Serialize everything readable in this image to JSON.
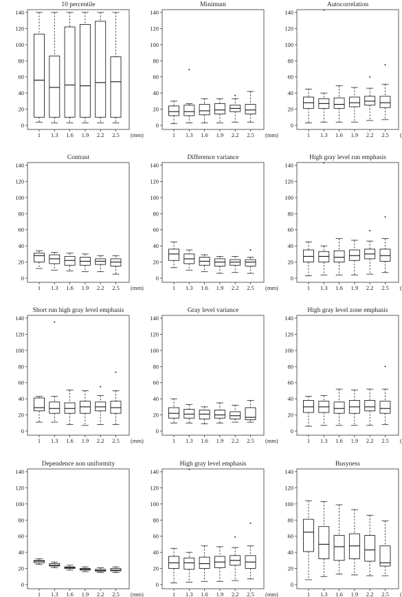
{
  "figure": {
    "unit_label": "(mm)"
  },
  "chart_data": [
    {
      "type": "box",
      "title": "10 percentile",
      "categories": [
        "1",
        "1.3",
        "1.6",
        "1.9",
        "2.2",
        "2.5"
      ],
      "ylim": [
        0,
        140
      ],
      "yticks": [
        0,
        20,
        40,
        60,
        80,
        100,
        120,
        140
      ],
      "boxes": [
        {
          "min": 4,
          "q1": 10,
          "median": 56,
          "q3": 113,
          "max": 140,
          "outliers": []
        },
        {
          "min": 3,
          "q1": 10,
          "median": 47,
          "q3": 86,
          "max": 140,
          "outliers": []
        },
        {
          "min": 3,
          "q1": 10,
          "median": 50,
          "q3": 122,
          "max": 140,
          "outliers": []
        },
        {
          "min": 3,
          "q1": 10,
          "median": 49,
          "q3": 125,
          "max": 140,
          "outliers": []
        },
        {
          "min": 3,
          "q1": 10,
          "median": 53,
          "q3": 129,
          "max": 140,
          "outliers": []
        },
        {
          "min": 3,
          "q1": 10,
          "median": 54,
          "q3": 85,
          "max": 140,
          "outliers": []
        }
      ]
    },
    {
      "type": "box",
      "title": "Minimum",
      "categories": [
        "1",
        "1.3",
        "1.6",
        "1.9",
        "2.2",
        "2.5"
      ],
      "ylim": [
        0,
        140
      ],
      "yticks": [
        0,
        20,
        40,
        60,
        80,
        100,
        120,
        140
      ],
      "boxes": [
        {
          "min": 2,
          "q1": 12,
          "median": 17,
          "q3": 24,
          "max": 30,
          "outliers": []
        },
        {
          "min": 3,
          "q1": 12,
          "median": 17,
          "q3": 25,
          "max": 27,
          "outliers": [
            69
          ]
        },
        {
          "min": 3,
          "q1": 13,
          "median": 18,
          "q3": 26,
          "max": 33,
          "outliers": []
        },
        {
          "min": 3,
          "q1": 14,
          "median": 19,
          "q3": 27,
          "max": 33,
          "outliers": []
        },
        {
          "min": 4,
          "q1": 17,
          "median": 21,
          "q3": 25,
          "max": 33,
          "outliers": [
            37
          ]
        },
        {
          "min": 4,
          "q1": 14,
          "median": 19,
          "q3": 26,
          "max": 42,
          "outliers": []
        }
      ]
    },
    {
      "type": "box",
      "title": "Autocorrelation",
      "categories": [
        "1",
        "1.3",
        "1.6",
        "1.9",
        "2.2",
        "2.5"
      ],
      "ylim": [
        0,
        140
      ],
      "yticks": [
        0,
        20,
        40,
        60,
        80,
        100,
        120,
        140
      ],
      "boxes": [
        {
          "min": 3,
          "q1": 21,
          "median": 28,
          "q3": 35,
          "max": 45,
          "outliers": []
        },
        {
          "min": 4,
          "q1": 21,
          "median": 27,
          "q3": 33,
          "max": 40,
          "outliers": [
            143
          ]
        },
        {
          "min": 4,
          "q1": 21,
          "median": 26,
          "q3": 34,
          "max": 49,
          "outliers": []
        },
        {
          "min": 4,
          "q1": 23,
          "median": 28,
          "q3": 35,
          "max": 47,
          "outliers": []
        },
        {
          "min": 6,
          "q1": 25,
          "median": 30,
          "q3": 36,
          "max": 46,
          "outliers": [
            60
          ]
        },
        {
          "min": 7,
          "q1": 22,
          "median": 28,
          "q3": 36,
          "max": 51,
          "outliers": [
            75
          ]
        }
      ]
    },
    {
      "type": "box",
      "title": "Contrast",
      "categories": [
        "1",
        "1.3",
        "1.6",
        "1.9",
        "2.2",
        "2.5"
      ],
      "ylim": [
        0,
        140
      ],
      "yticks": [
        0,
        20,
        40,
        60,
        80,
        100,
        120,
        140
      ],
      "boxes": [
        {
          "min": 12,
          "q1": 20,
          "median": 28,
          "q3": 31,
          "max": 34,
          "outliers": []
        },
        {
          "min": 10,
          "q1": 18,
          "median": 24,
          "q3": 29,
          "max": 32,
          "outliers": []
        },
        {
          "min": 9,
          "q1": 16,
          "median": 22,
          "q3": 27,
          "max": 31,
          "outliers": []
        },
        {
          "min": 8,
          "q1": 16,
          "median": 21,
          "q3": 26,
          "max": 30,
          "outliers": []
        },
        {
          "min": 8,
          "q1": 17,
          "median": 21,
          "q3": 24,
          "max": 28,
          "outliers": []
        },
        {
          "min": 5,
          "q1": 15,
          "median": 20,
          "q3": 24,
          "max": 28,
          "outliers": []
        }
      ]
    },
    {
      "type": "box",
      "title": "Difference variance",
      "categories": [
        "1",
        "1.3",
        "1.6",
        "1.9",
        "2.2",
        "2.5"
      ],
      "ylim": [
        0,
        140
      ],
      "yticks": [
        0,
        20,
        40,
        60,
        80,
        100,
        120,
        140
      ],
      "boxes": [
        {
          "min": 13,
          "q1": 22,
          "median": 30,
          "q3": 36,
          "max": 45,
          "outliers": []
        },
        {
          "min": 10,
          "q1": 18,
          "median": 24,
          "q3": 30,
          "max": 35,
          "outliers": []
        },
        {
          "min": 8,
          "q1": 16,
          "median": 21,
          "q3": 26,
          "max": 29,
          "outliers": []
        },
        {
          "min": 6,
          "q1": 15,
          "median": 20,
          "q3": 24,
          "max": 27,
          "outliers": []
        },
        {
          "min": 7,
          "q1": 16,
          "median": 20,
          "q3": 23,
          "max": 27,
          "outliers": []
        },
        {
          "min": 6,
          "q1": 15,
          "median": 20,
          "q3": 23,
          "max": 26,
          "outliers": [
            35
          ]
        }
      ]
    },
    {
      "type": "box",
      "title": "High gray level run emphasis",
      "categories": [
        "1",
        "1.3",
        "1.6",
        "1.9",
        "2.2",
        "2.5"
      ],
      "ylim": [
        0,
        140
      ],
      "yticks": [
        0,
        20,
        40,
        60,
        80,
        100,
        120,
        140
      ],
      "boxes": [
        {
          "min": 3,
          "q1": 20,
          "median": 27,
          "q3": 35,
          "max": 45,
          "outliers": []
        },
        {
          "min": 4,
          "q1": 20,
          "median": 27,
          "q3": 33,
          "max": 40,
          "outliers": [
            143
          ]
        },
        {
          "min": 4,
          "q1": 20,
          "median": 26,
          "q3": 34,
          "max": 49,
          "outliers": []
        },
        {
          "min": 4,
          "q1": 22,
          "median": 28,
          "q3": 35,
          "max": 47,
          "outliers": []
        },
        {
          "min": 5,
          "q1": 24,
          "median": 30,
          "q3": 36,
          "max": 46,
          "outliers": [
            59
          ]
        },
        {
          "min": 7,
          "q1": 21,
          "median": 28,
          "q3": 36,
          "max": 49,
          "outliers": [
            76
          ]
        }
      ]
    },
    {
      "type": "box",
      "title": "Short run high gray level emphasis",
      "categories": [
        "1",
        "1.3",
        "1.6",
        "1.9",
        "2.2",
        "2.5"
      ],
      "ylim": [
        0,
        140
      ],
      "yticks": [
        0,
        20,
        40,
        60,
        80,
        100,
        120,
        140
      ],
      "boxes": [
        {
          "min": 11,
          "q1": 25,
          "median": 29,
          "q3": 41,
          "max": 43,
          "outliers": []
        },
        {
          "min": 11,
          "q1": 22,
          "median": 28,
          "q3": 36,
          "max": 43,
          "outliers": [
            135
          ]
        },
        {
          "min": 8,
          "q1": 22,
          "median": 28,
          "q3": 35,
          "max": 51,
          "outliers": []
        },
        {
          "min": 7,
          "q1": 22,
          "median": 30,
          "q3": 37,
          "max": 50,
          "outliers": []
        },
        {
          "min": 8,
          "q1": 25,
          "median": 30,
          "q3": 36,
          "max": 44,
          "outliers": [
            55
          ]
        },
        {
          "min": 8,
          "q1": 22,
          "median": 29,
          "q3": 37,
          "max": 50,
          "outliers": [
            73
          ]
        }
      ]
    },
    {
      "type": "box",
      "title": "Gray level variance",
      "categories": [
        "1",
        "1.3",
        "1.6",
        "1.9",
        "2.2",
        "2.5"
      ],
      "ylim": [
        0,
        140
      ],
      "yticks": [
        0,
        20,
        40,
        60,
        80,
        100,
        120,
        140
      ],
      "boxes": [
        {
          "min": 10,
          "q1": 16,
          "median": 22,
          "q3": 29,
          "max": 40,
          "outliers": []
        },
        {
          "min": 10,
          "q1": 16,
          "median": 21,
          "q3": 27,
          "max": 33,
          "outliers": []
        },
        {
          "min": 9,
          "q1": 15,
          "median": 21,
          "q3": 26,
          "max": 30,
          "outliers": []
        },
        {
          "min": 10,
          "q1": 16,
          "median": 20,
          "q3": 26,
          "max": 35,
          "outliers": []
        },
        {
          "min": 11,
          "q1": 15,
          "median": 19,
          "q3": 24,
          "max": 32,
          "outliers": []
        },
        {
          "min": 11,
          "q1": 14,
          "median": 17,
          "q3": 29,
          "max": 38,
          "outliers": []
        }
      ]
    },
    {
      "type": "box",
      "title": "High gray level zone emphasis",
      "categories": [
        "1",
        "1.3",
        "1.6",
        "1.9",
        "2.2",
        "2.5"
      ],
      "ylim": [
        0,
        140
      ],
      "yticks": [
        0,
        20,
        40,
        60,
        80,
        100,
        120,
        140
      ],
      "boxes": [
        {
          "min": 6,
          "q1": 23,
          "median": 30,
          "q3": 38,
          "max": 43,
          "outliers": []
        },
        {
          "min": 7,
          "q1": 23,
          "median": 30,
          "q3": 37,
          "max": 44,
          "outliers": []
        },
        {
          "min": 7,
          "q1": 22,
          "median": 28,
          "q3": 36,
          "max": 52,
          "outliers": []
        },
        {
          "min": 7,
          "q1": 22,
          "median": 30,
          "q3": 38,
          "max": 51,
          "outliers": []
        },
        {
          "min": 7,
          "q1": 25,
          "median": 30,
          "q3": 38,
          "max": 52,
          "outliers": []
        },
        {
          "min": 8,
          "q1": 22,
          "median": 28,
          "q3": 37,
          "max": 52,
          "outliers": [
            80
          ]
        }
      ]
    },
    {
      "type": "box",
      "title": "Dependence non uniformity",
      "categories": [
        "1",
        "1.3",
        "1.6",
        "1.9",
        "2.2",
        "2.5"
      ],
      "ylim": [
        0,
        140
      ],
      "yticks": [
        0,
        20,
        40,
        60,
        80,
        100,
        120,
        140
      ],
      "boxes": [
        {
          "min": 25,
          "q1": 27,
          "median": 29,
          "q3": 30,
          "max": 32,
          "outliers": []
        },
        {
          "min": 21,
          "q1": 23,
          "median": 24,
          "q3": 26,
          "max": 28,
          "outliers": []
        },
        {
          "min": 18,
          "q1": 20,
          "median": 21,
          "q3": 22,
          "max": 24,
          "outliers": []
        },
        {
          "min": 16,
          "q1": 18,
          "median": 19,
          "q3": 20,
          "max": 22,
          "outliers": []
        },
        {
          "min": 15,
          "q1": 16.5,
          "median": 17.5,
          "q3": 19,
          "max": 21,
          "outliers": []
        },
        {
          "min": 15,
          "q1": 17,
          "median": 18,
          "q3": 20,
          "max": 22,
          "outliers": []
        }
      ]
    },
    {
      "type": "box",
      "title": "High gray level emphasis",
      "categories": [
        "1",
        "1.3",
        "1.6",
        "1.9",
        "2.2",
        "2.5"
      ],
      "ylim": [
        0,
        140
      ],
      "yticks": [
        0,
        20,
        40,
        60,
        80,
        100,
        120,
        140
      ],
      "boxes": [
        {
          "min": 2,
          "q1": 20,
          "median": 27,
          "q3": 35,
          "max": 45,
          "outliers": []
        },
        {
          "min": 3,
          "q1": 19,
          "median": 27,
          "q3": 33,
          "max": 40,
          "outliers": [
            143
          ]
        },
        {
          "min": 4,
          "q1": 20,
          "median": 26,
          "q3": 34,
          "max": 48,
          "outliers": []
        },
        {
          "min": 4,
          "q1": 21,
          "median": 28,
          "q3": 35,
          "max": 47,
          "outliers": []
        },
        {
          "min": 5,
          "q1": 24,
          "median": 30,
          "q3": 36,
          "max": 46,
          "outliers": [
            59
          ]
        },
        {
          "min": 7,
          "q1": 20,
          "median": 28,
          "q3": 36,
          "max": 48,
          "outliers": [
            76
          ]
        }
      ]
    },
    {
      "type": "box",
      "title": "Busyness",
      "categories": [
        "1",
        "1.3",
        "1.6",
        "1.9",
        "2.2",
        "2.5"
      ],
      "ylim": [
        0,
        140
      ],
      "yticks": [
        0,
        20,
        40,
        60,
        80,
        100,
        120,
        140
      ],
      "boxes": [
        {
          "min": 6,
          "q1": 41,
          "median": 65,
          "q3": 81,
          "max": 104,
          "outliers": []
        },
        {
          "min": 10,
          "q1": 32,
          "median": 50,
          "q3": 72,
          "max": 103,
          "outliers": []
        },
        {
          "min": 13,
          "q1": 30,
          "median": 47,
          "q3": 61,
          "max": 99,
          "outliers": []
        },
        {
          "min": 12,
          "q1": 32,
          "median": 48,
          "q3": 63,
          "max": 93,
          "outliers": []
        },
        {
          "min": 11,
          "q1": 29,
          "median": 43,
          "q3": 61,
          "max": 86,
          "outliers": []
        },
        {
          "min": 11,
          "q1": 23,
          "median": 27,
          "q3": 48,
          "max": 79,
          "outliers": []
        }
      ]
    }
  ]
}
